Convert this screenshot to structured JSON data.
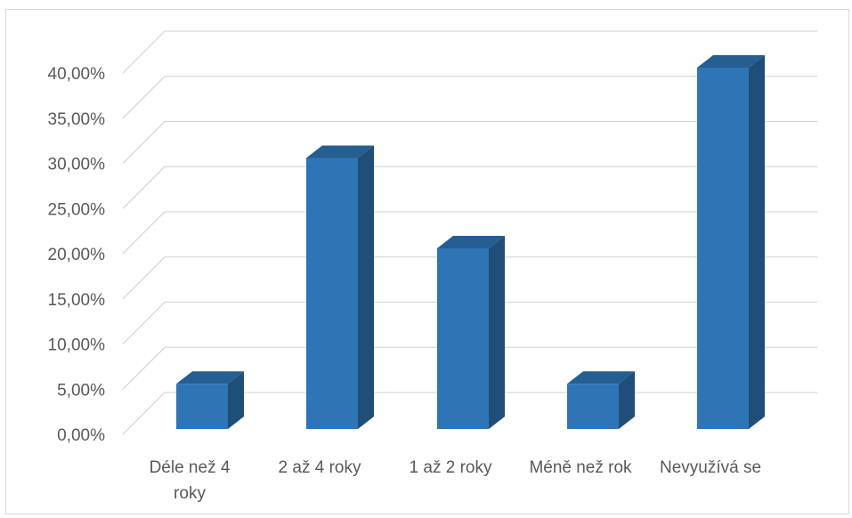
{
  "chart_data": {
    "type": "bar",
    "style": "3d-column",
    "categories": [
      [
        "Déle než 4",
        "roky"
      ],
      [
        "2 až 4 roky"
      ],
      [
        "1 až 2 roky"
      ],
      [
        "Méně než rok"
      ],
      [
        "Nevyužívá se"
      ]
    ],
    "values": [
      5,
      30,
      20,
      5,
      40
    ],
    "y_ticks": [
      "0,00%",
      "5,00%",
      "10,00%",
      "15,00%",
      "20,00%",
      "25,00%",
      "30,00%",
      "35,00%",
      "40,00%"
    ],
    "ylim": [
      0,
      40
    ],
    "y_unit": "%",
    "grid": true,
    "legend": false,
    "colors": {
      "bar_front": "#2e75b6",
      "bar_side": "#1f4e79",
      "bar_top": "#255e91",
      "grid": "#d9d9d9",
      "text": "#595959"
    }
  }
}
